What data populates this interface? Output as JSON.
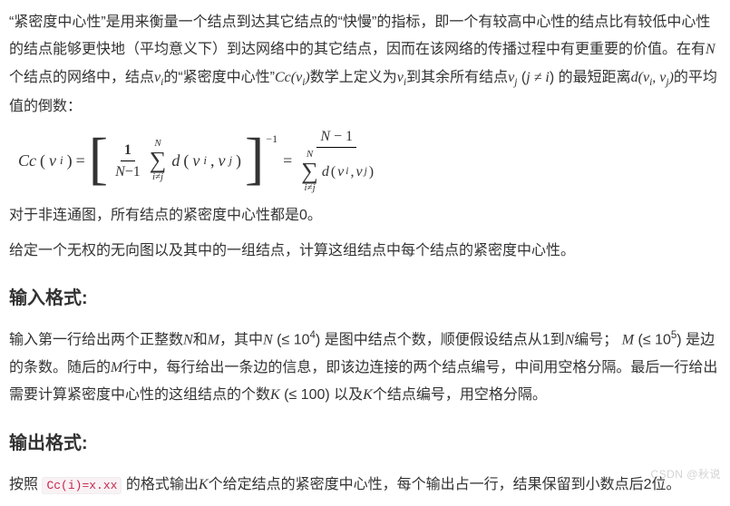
{
  "intro": {
    "p1_a": "“紧密度中心性”是用来衡量一个结点到达其它结点的“快慢”的指标，即一个有较高中心性的结点比有较低中心性的结点能够更快地（平均意义下）到达网络中的其它结点，因而在该网络的传播过程中有更重要的价值。在有",
    "N": "N",
    "p1_b": "个结点的网络中，结点",
    "vi": "v",
    "vi_sub": "i",
    "p1_c": "的“紧密度中心性”",
    "Cc": "Cc",
    "Cc_arg_open": "(",
    "Cc_arg_v": "v",
    "Cc_arg_i": "i",
    "Cc_arg_close": ")",
    "p1_d": "数学上定义为",
    "p1_e": "到其余所有结点",
    "vj": "v",
    "vj_sub": "j",
    "p1_f": " (",
    "jnei": "j ≠ i",
    "p1_g": ") 的最短距离",
    "d": "d",
    "d_open": "(",
    "d_v1": "v",
    "d_i": "i",
    "d_comma": ", ",
    "d_v2": "v",
    "d_j": "j",
    "d_close": ")",
    "p1_h": "的平均值的倒数："
  },
  "formula": {
    "lhs_Cc": "Cc",
    "lhs_open": "(",
    "lhs_v": "v",
    "lhs_i": "i",
    "lhs_close": ")",
    "eq": " = ",
    "lbracket": "[",
    "rbracket": "]",
    "frac1_num": "1",
    "frac1_den_a": "N",
    "frac1_den_b": "−1",
    "sum_top": "N",
    "sum_sym": "∑",
    "sum_bot": "i≠j",
    "d": "d",
    "d_open": " (",
    "d_v1": "v",
    "d_i": "i",
    "d_comma": ", ",
    "d_v2": "v",
    "d_j": "j",
    "d_close": ")",
    "pow": "−1",
    "eq2": " = ",
    "rhs_num_a": "N",
    "rhs_num_b": " − 1"
  },
  "mid": {
    "p2": "对于非连通图，所有结点的紧密度中心性都是0。",
    "p3": "给定一个无权的无向图以及其中的一组结点，计算这组结点中每个结点的紧密度中心性。"
  },
  "input": {
    "heading": "输入格式:",
    "a": "输入第一行给出两个正整数",
    "N": "N",
    "and": "和",
    "M": "M",
    "comma1": "，其中",
    "N2": "N",
    "le1_open": " (≤ 10",
    "le1_exp": "4",
    "le1_close": ") ",
    "b": "是图中结点个数，顺便假设结点从1到",
    "N3": "N",
    "b2": "编号；",
    "M2": "M",
    "le2_open": " (≤ 10",
    "le2_exp": "5",
    "le2_close": ") ",
    "c": "是边的条数。随后的",
    "M3": "M",
    "d": "行中，每行给出一条边的信息，即该边连接的两个结点编号，中间用空格分隔。最后一行给出需要计算紧密度中心性的这组结点的个数",
    "K": "K",
    "le3": " (≤ 100) ",
    "e": "以及",
    "K2": "K",
    "f": "个结点编号，用空格分隔。"
  },
  "output": {
    "heading": "输出格式:",
    "a": "按照 ",
    "code": "Cc(i)=x.xx",
    "b": " 的格式输出",
    "K": "K",
    "c": "个给定结点的紧密度中心性，每个输出占一行，结果保留到小数点后2位。"
  },
  "watermark": "CSDN @秋说"
}
